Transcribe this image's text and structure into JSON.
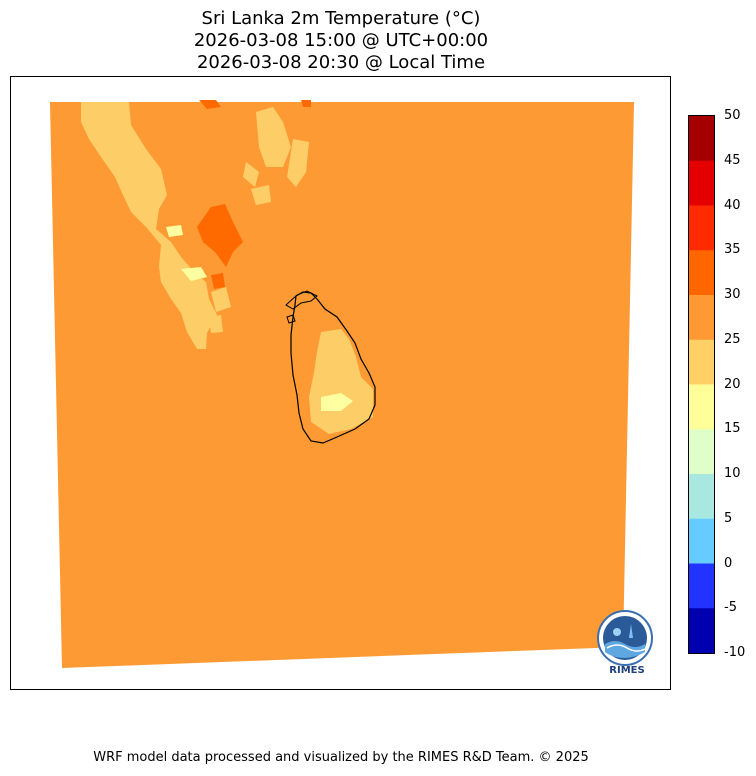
{
  "title": {
    "line1": "Sri Lanka 2m Temperature (°C)",
    "line2": "2026-03-08 15:00 @ UTC+00:00",
    "line3": "2026-03-08 20:30 @ Local Time"
  },
  "colorbar": {
    "levels": [
      50,
      45,
      40,
      35,
      30,
      25,
      20,
      15,
      10,
      5,
      0,
      -5,
      -10
    ],
    "labels": [
      "50",
      "45",
      "40",
      "35",
      "30",
      "25",
      "20",
      "15",
      "10",
      "5",
      "0",
      "-5",
      "-10"
    ],
    "colors_top_to_bottom": [
      "#a50000",
      "#e50000",
      "#ff2a00",
      "#ff6600",
      "#ff9933",
      "#ffd066",
      "#ffff99",
      "#e0ffc8",
      "#a8e8e0",
      "#66ccff",
      "#2233ff",
      "#0000b0"
    ]
  },
  "map": {
    "main_color": "#fd9a33",
    "warm_color": "#fe6a00",
    "cool_color": "#fdce67",
    "coolest_color": "#feffa0",
    "country": "Sri Lanka"
  },
  "logo": {
    "text": "RIMES"
  },
  "footer": {
    "text": "WRF model data processed and visualized by the RIMES R&D Team. © 2025"
  }
}
